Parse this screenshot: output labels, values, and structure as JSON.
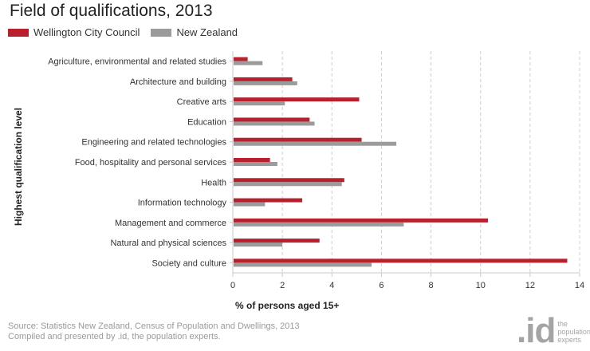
{
  "title": "Field of qualifications, 2013",
  "legend": [
    {
      "label": "Wellington City Council",
      "color": "#b8202e"
    },
    {
      "label": "New Zealand",
      "color": "#9b9b9b"
    }
  ],
  "source": {
    "line1": "Source: Statistics New Zealand, Census of Population and Dwellings, 2013",
    "line2": "Compiled and presented by .id, the population experts."
  },
  "logo": {
    "mark": ".id",
    "text": "the\npopulation\nexperts"
  },
  "chart_data": {
    "type": "bar",
    "orientation": "horizontal",
    "categories": [
      "Agriculture, environmental and related studies",
      "Architecture and building",
      "Creative arts",
      "Education",
      "Engineering and related technologies",
      "Food, hospitality and personal services",
      "Health",
      "Information technology",
      "Management and commerce",
      "Natural and physical sciences",
      "Society and culture"
    ],
    "series": [
      {
        "name": "Wellington City Council",
        "color": "#b8202e",
        "values": [
          0.6,
          2.4,
          5.1,
          3.1,
          5.2,
          1.5,
          4.5,
          2.8,
          10.3,
          3.5,
          13.5
        ]
      },
      {
        "name": "New Zealand",
        "color": "#9b9b9b",
        "values": [
          1.2,
          2.6,
          2.1,
          3.3,
          6.6,
          1.8,
          4.4,
          1.3,
          6.9,
          2.0,
          5.6
        ]
      }
    ],
    "xlabel": "% of persons aged 15+",
    "ylabel": "Highest qualification level",
    "xlim": [
      0,
      14
    ],
    "xticks": [
      0,
      2,
      4,
      6,
      8,
      10,
      12,
      14
    ],
    "grid": "vertical dashed",
    "legend_position": "top-left"
  }
}
